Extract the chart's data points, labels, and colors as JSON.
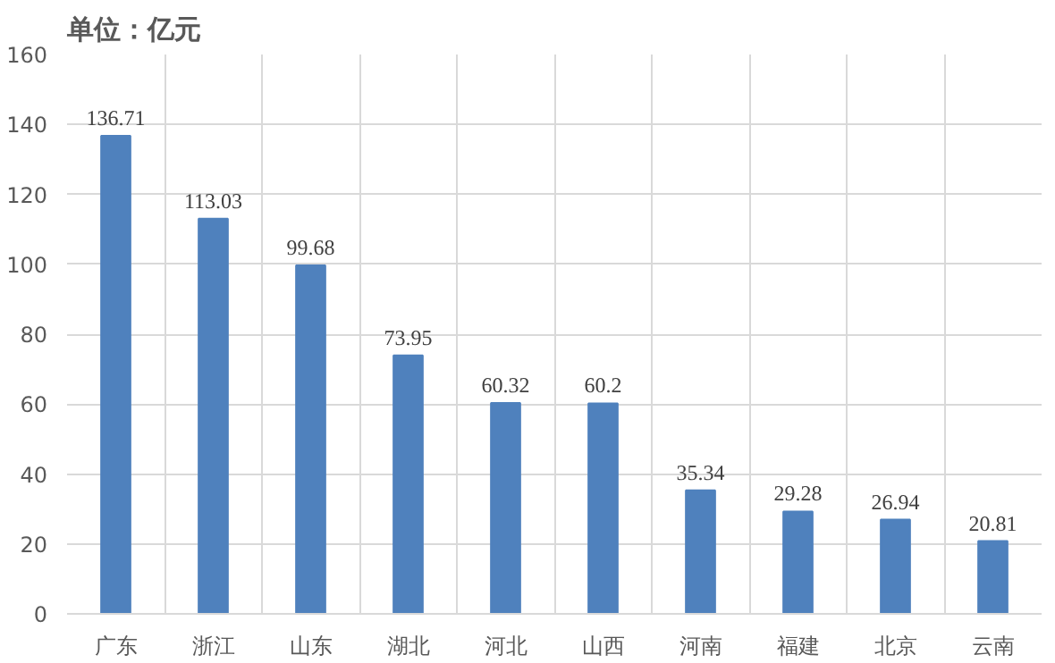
{
  "chart_data": {
    "type": "bar",
    "title": "单位：亿元",
    "categories": [
      "广东",
      "浙江",
      "山东",
      "湖北",
      "河北",
      "山西",
      "河南",
      "福建",
      "北京",
      "云南"
    ],
    "values": [
      136.71,
      113.03,
      99.68,
      73.95,
      60.32,
      60.2,
      35.34,
      29.28,
      26.94,
      20.81
    ],
    "color": "#4f81bd",
    "ylim": [
      0,
      160
    ],
    "yticks": [
      0,
      20,
      40,
      60,
      80,
      100,
      120,
      140,
      160
    ],
    "grid": true,
    "data_labels": true
  }
}
